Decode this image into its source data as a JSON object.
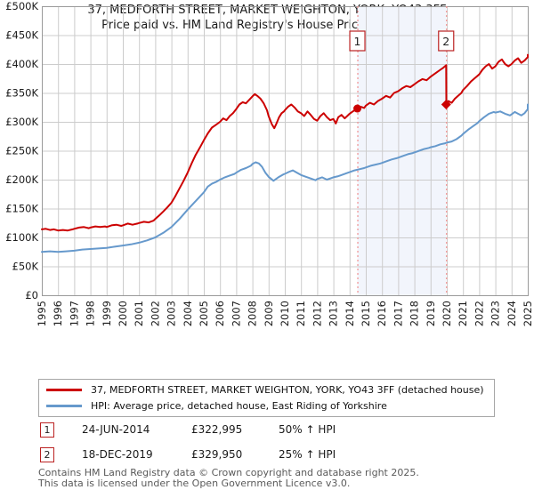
{
  "title": "37, MEDFORTH STREET, MARKET WEIGHTON, YORK, YO43 3FF",
  "subtitle": "Price paid vs. HM Land Registry's House Price Index (HPI)",
  "legend": {
    "items": [
      {
        "label": "37, MEDFORTH STREET, MARKET WEIGHTON, YORK, YO43 3FF (detached house)",
        "color": "#cc0000"
      },
      {
        "label": "HPI: Average price, detached house, East Riding of Yorkshire",
        "color": "#6699cc"
      }
    ]
  },
  "annotations": [
    {
      "num": "1",
      "date": "24-JUN-2014",
      "price": "£322,995",
      "hpi": "50% ↑ HPI"
    },
    {
      "num": "2",
      "date": "18-DEC-2019",
      "price": "£329,950",
      "hpi": "25% ↑ HPI"
    }
  ],
  "footer": {
    "line1": "Contains HM Land Registry data © Crown copyright and database right 2025.",
    "line2": "This data is licensed under the Open Government Licence v3.0."
  },
  "chart_data": {
    "type": "line",
    "unit": "GBP thousands",
    "x_range": [
      1995,
      2025
    ],
    "y_range": [
      0,
      500
    ],
    "x_ticks": [
      1995,
      1996,
      1997,
      1998,
      1999,
      2000,
      2001,
      2002,
      2003,
      2004,
      2005,
      2006,
      2007,
      2008,
      2009,
      2010,
      2011,
      2012,
      2013,
      2014,
      2015,
      2016,
      2017,
      2018,
      2019,
      2020,
      2021,
      2022,
      2023,
      2024,
      2025
    ],
    "y_ticks": [
      {
        "v": 0,
        "label": "£0"
      },
      {
        "v": 50,
        "label": "£50K"
      },
      {
        "v": 100,
        "label": "£100K"
      },
      {
        "v": 150,
        "label": "£150K"
      },
      {
        "v": 200,
        "label": "£200K"
      },
      {
        "v": 250,
        "label": "£250K"
      },
      {
        "v": 300,
        "label": "£300K"
      },
      {
        "v": 350,
        "label": "£350K"
      },
      {
        "v": 400,
        "label": "£400K"
      },
      {
        "v": 450,
        "label": "£450K"
      },
      {
        "v": 500,
        "label": "£500K"
      }
    ],
    "sales": [
      {
        "n": "1",
        "x": 2014.48,
        "value": 322.995,
        "date": "24-JUN-2014",
        "price_gbp": 322995,
        "marker": "circle"
      },
      {
        "n": "2",
        "x": 2019.96,
        "value": 329.95,
        "date": "18-DEC-2019",
        "price_gbp": 329950,
        "marker": "diamond"
      }
    ],
    "band_x": [
      2014.48,
      2019.96
    ],
    "style": {
      "property_color": "#cc0000",
      "hpi_color": "#6699cc",
      "grid_color": "#cccccc",
      "frame_color": "#9a9a9a",
      "dash_color": "#f09090",
      "band_fill": "#f2f5fc",
      "flag_border": "#bb2222",
      "tick_text": "#1a1a1a"
    },
    "series": [
      {
        "name": "property",
        "points": [
          [
            1995.0,
            114
          ],
          [
            1995.25,
            115
          ],
          [
            1995.5,
            113
          ],
          [
            1995.75,
            114
          ],
          [
            1996.0,
            112
          ],
          [
            1996.3,
            113
          ],
          [
            1996.6,
            112
          ],
          [
            1996.9,
            114
          ],
          [
            1997.0,
            115
          ],
          [
            1997.3,
            117
          ],
          [
            1997.6,
            118
          ],
          [
            1997.9,
            116
          ],
          [
            1998.0,
            117
          ],
          [
            1998.3,
            119
          ],
          [
            1998.6,
            118
          ],
          [
            1998.9,
            119
          ],
          [
            1999.0,
            118
          ],
          [
            1999.3,
            121
          ],
          [
            1999.6,
            122
          ],
          [
            1999.9,
            120
          ],
          [
            2000.0,
            121
          ],
          [
            2000.3,
            124
          ],
          [
            2000.6,
            122
          ],
          [
            2000.9,
            124
          ],
          [
            2001.0,
            125
          ],
          [
            2001.3,
            127
          ],
          [
            2001.6,
            126
          ],
          [
            2001.9,
            129
          ],
          [
            2002.0,
            132
          ],
          [
            2002.25,
            138
          ],
          [
            2002.5,
            145
          ],
          [
            2002.75,
            152
          ],
          [
            2003.0,
            160
          ],
          [
            2003.25,
            172
          ],
          [
            2003.5,
            185
          ],
          [
            2003.75,
            198
          ],
          [
            2004.0,
            212
          ],
          [
            2004.25,
            228
          ],
          [
            2004.5,
            243
          ],
          [
            2004.75,
            255
          ],
          [
            2005.0,
            268
          ],
          [
            2005.25,
            280
          ],
          [
            2005.5,
            290
          ],
          [
            2005.75,
            295
          ],
          [
            2006.0,
            300
          ],
          [
            2006.2,
            306
          ],
          [
            2006.4,
            303
          ],
          [
            2006.6,
            310
          ],
          [
            2006.8,
            315
          ],
          [
            2007.0,
            322
          ],
          [
            2007.2,
            330
          ],
          [
            2007.4,
            334
          ],
          [
            2007.6,
            332
          ],
          [
            2007.8,
            338
          ],
          [
            2008.0,
            344
          ],
          [
            2008.15,
            348
          ],
          [
            2008.3,
            345
          ],
          [
            2008.5,
            340
          ],
          [
            2008.7,
            332
          ],
          [
            2008.9,
            320
          ],
          [
            2009.0,
            310
          ],
          [
            2009.2,
            296
          ],
          [
            2009.35,
            289
          ],
          [
            2009.5,
            298
          ],
          [
            2009.65,
            308
          ],
          [
            2009.8,
            315
          ],
          [
            2009.95,
            318
          ],
          [
            2010.0,
            320
          ],
          [
            2010.2,
            326
          ],
          [
            2010.4,
            330
          ],
          [
            2010.6,
            325
          ],
          [
            2010.8,
            318
          ],
          [
            2011.0,
            315
          ],
          [
            2011.2,
            310
          ],
          [
            2011.4,
            318
          ],
          [
            2011.6,
            312
          ],
          [
            2011.8,
            305
          ],
          [
            2012.0,
            302
          ],
          [
            2012.2,
            310
          ],
          [
            2012.4,
            315
          ],
          [
            2012.6,
            308
          ],
          [
            2012.8,
            303
          ],
          [
            2013.0,
            305
          ],
          [
            2013.15,
            297
          ],
          [
            2013.3,
            308
          ],
          [
            2013.5,
            312
          ],
          [
            2013.7,
            306
          ],
          [
            2013.85,
            310
          ],
          [
            2014.0,
            314
          ],
          [
            2014.2,
            318
          ],
          [
            2014.48,
            322.995
          ],
          [
            2014.7,
            326
          ],
          [
            2014.9,
            324
          ],
          [
            2015.0,
            328
          ],
          [
            2015.25,
            333
          ],
          [
            2015.5,
            330
          ],
          [
            2015.75,
            336
          ],
          [
            2016.0,
            340
          ],
          [
            2016.25,
            345
          ],
          [
            2016.5,
            342
          ],
          [
            2016.75,
            350
          ],
          [
            2017.0,
            353
          ],
          [
            2017.25,
            358
          ],
          [
            2017.5,
            362
          ],
          [
            2017.75,
            360
          ],
          [
            2018.0,
            365
          ],
          [
            2018.25,
            370
          ],
          [
            2018.5,
            374
          ],
          [
            2018.75,
            372
          ],
          [
            2019.0,
            378
          ],
          [
            2019.2,
            382
          ],
          [
            2019.4,
            386
          ],
          [
            2019.6,
            390
          ],
          [
            2019.8,
            394
          ],
          [
            2019.93,
            397
          ],
          [
            2019.96,
            398
          ],
          [
            2019.97,
            329.95
          ],
          [
            2020.1,
            336
          ],
          [
            2020.3,
            333
          ],
          [
            2020.5,
            340
          ],
          [
            2020.7,
            345
          ],
          [
            2020.9,
            350
          ],
          [
            2021.0,
            355
          ],
          [
            2021.25,
            362
          ],
          [
            2021.5,
            370
          ],
          [
            2021.75,
            376
          ],
          [
            2022.0,
            382
          ],
          [
            2022.2,
            390
          ],
          [
            2022.4,
            396
          ],
          [
            2022.6,
            400
          ],
          [
            2022.8,
            392
          ],
          [
            2023.0,
            396
          ],
          [
            2023.2,
            404
          ],
          [
            2023.4,
            408
          ],
          [
            2023.6,
            400
          ],
          [
            2023.8,
            396
          ],
          [
            2024.0,
            400
          ],
          [
            2024.2,
            406
          ],
          [
            2024.4,
            410
          ],
          [
            2024.6,
            402
          ],
          [
            2024.8,
            406
          ],
          [
            2025.0,
            412
          ],
          [
            2025.2,
            416
          ]
        ]
      },
      {
        "name": "hpi",
        "points": [
          [
            1995.0,
            75
          ],
          [
            1995.5,
            76
          ],
          [
            1996.0,
            75
          ],
          [
            1996.5,
            76
          ],
          [
            1997.0,
            77
          ],
          [
            1997.5,
            79
          ],
          [
            1998.0,
            80
          ],
          [
            1998.5,
            81
          ],
          [
            1999.0,
            82
          ],
          [
            1999.5,
            84
          ],
          [
            2000.0,
            86
          ],
          [
            2000.5,
            88
          ],
          [
            2001.0,
            91
          ],
          [
            2001.5,
            95
          ],
          [
            2002.0,
            100
          ],
          [
            2002.5,
            108
          ],
          [
            2003.0,
            118
          ],
          [
            2003.5,
            132
          ],
          [
            2004.0,
            148
          ],
          [
            2004.5,
            163
          ],
          [
            2005.0,
            178
          ],
          [
            2005.25,
            188
          ],
          [
            2005.5,
            193
          ],
          [
            2005.75,
            196
          ],
          [
            2006.0,
            200
          ],
          [
            2006.3,
            204
          ],
          [
            2006.6,
            207
          ],
          [
            2006.9,
            210
          ],
          [
            2007.0,
            212
          ],
          [
            2007.3,
            217
          ],
          [
            2007.6,
            220
          ],
          [
            2007.9,
            224
          ],
          [
            2008.0,
            227
          ],
          [
            2008.2,
            230
          ],
          [
            2008.4,
            228
          ],
          [
            2008.6,
            222
          ],
          [
            2008.8,
            212
          ],
          [
            2009.0,
            205
          ],
          [
            2009.3,
            198
          ],
          [
            2009.6,
            204
          ],
          [
            2009.9,
            209
          ],
          [
            2010.0,
            210
          ],
          [
            2010.3,
            214
          ],
          [
            2010.5,
            216
          ],
          [
            2010.8,
            211
          ],
          [
            2011.0,
            208
          ],
          [
            2011.3,
            205
          ],
          [
            2011.6,
            202
          ],
          [
            2011.9,
            199
          ],
          [
            2012.0,
            201
          ],
          [
            2012.3,
            204
          ],
          [
            2012.6,
            200
          ],
          [
            2012.9,
            203
          ],
          [
            2013.0,
            204
          ],
          [
            2013.3,
            206
          ],
          [
            2013.6,
            209
          ],
          [
            2013.9,
            212
          ],
          [
            2014.0,
            213
          ],
          [
            2014.3,
            216
          ],
          [
            2014.6,
            218
          ],
          [
            2014.9,
            220
          ],
          [
            2015.0,
            221
          ],
          [
            2015.3,
            224
          ],
          [
            2015.6,
            226
          ],
          [
            2015.9,
            228
          ],
          [
            2016.0,
            229
          ],
          [
            2016.3,
            232
          ],
          [
            2016.6,
            235
          ],
          [
            2016.9,
            237
          ],
          [
            2017.0,
            238
          ],
          [
            2017.3,
            241
          ],
          [
            2017.6,
            244
          ],
          [
            2017.9,
            246
          ],
          [
            2018.0,
            247
          ],
          [
            2018.3,
            250
          ],
          [
            2018.6,
            253
          ],
          [
            2018.9,
            255
          ],
          [
            2019.0,
            256
          ],
          [
            2019.3,
            258
          ],
          [
            2019.6,
            261
          ],
          [
            2019.9,
            263
          ],
          [
            2020.0,
            264
          ],
          [
            2020.3,
            266
          ],
          [
            2020.6,
            270
          ],
          [
            2020.9,
            276
          ],
          [
            2021.0,
            279
          ],
          [
            2021.3,
            286
          ],
          [
            2021.6,
            292
          ],
          [
            2021.9,
            298
          ],
          [
            2022.0,
            301
          ],
          [
            2022.3,
            308
          ],
          [
            2022.6,
            314
          ],
          [
            2022.9,
            317
          ],
          [
            2023.0,
            316
          ],
          [
            2023.3,
            318
          ],
          [
            2023.6,
            314
          ],
          [
            2023.9,
            311
          ],
          [
            2024.0,
            313
          ],
          [
            2024.2,
            317
          ],
          [
            2024.4,
            314
          ],
          [
            2024.6,
            311
          ],
          [
            2024.8,
            315
          ],
          [
            2025.0,
            322
          ],
          [
            2025.2,
            330
          ]
        ]
      }
    ]
  }
}
